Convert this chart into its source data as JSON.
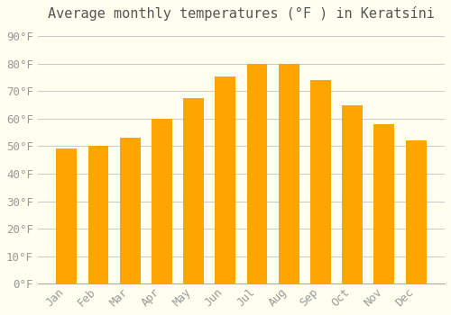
{
  "title": "Average monthly temperatures (°F ) in Keratsíni",
  "months": [
    "Jan",
    "Feb",
    "Mar",
    "Apr",
    "May",
    "Jun",
    "Jul",
    "Aug",
    "Sep",
    "Oct",
    "Nov",
    "Dec"
  ],
  "values": [
    49,
    50,
    53,
    60,
    67.5,
    75.5,
    80,
    80,
    74,
    65,
    58,
    52
  ],
  "bar_color_top": "#FFA500",
  "bar_color_bottom": "#FFD580",
  "background_color": "#FFFFF0",
  "grid_color": "#CCCCCC",
  "yticks": [
    0,
    10,
    20,
    30,
    40,
    50,
    60,
    70,
    80,
    90
  ],
  "ylim": [
    0,
    93
  ],
  "tick_label_color": "#999999",
  "title_color": "#555555",
  "title_fontsize": 11,
  "tick_fontsize": 9
}
